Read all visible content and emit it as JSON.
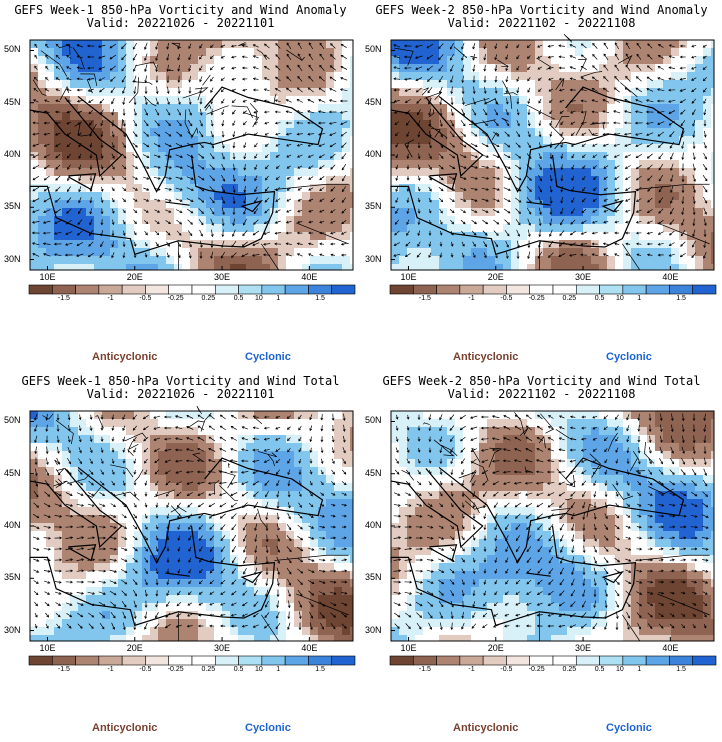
{
  "panels": [
    {
      "title": "GEFS Week-1 850-hPa Vorticity and Wind Anomaly",
      "valid": "Valid: 20221026 - 20221101"
    },
    {
      "title": "GEFS Week-2 850-hPa Vorticity and Wind Anomaly",
      "valid": "Valid: 20221102 - 20221108"
    },
    {
      "title": "GEFS Week-1 850-hPa Vorticity and Wind Total",
      "valid": "Valid: 20221026 - 20221101"
    },
    {
      "title": "GEFS Week-2 850-hPa Vorticity and Wind Total",
      "valid": "Valid: 20221102 - 20221108"
    }
  ],
  "axes": {
    "lat_labels": [
      "50N",
      "45N",
      "40N",
      "35N",
      "30N"
    ],
    "lon_labels": [
      "10E",
      "20E",
      "30E",
      "40E"
    ]
  },
  "colorbar": {
    "labels": [
      "-1.5",
      "-1",
      "-0.5",
      "-0.25",
      "0.25",
      "0.5",
      "1",
      "1.5"
    ],
    "exponent": "10",
    "colors": [
      "#6e4433",
      "#8f6351",
      "#ad8471",
      "#c9a898",
      "#e2cbc0",
      "#f3e6e0",
      "#ffffff",
      "#ffffff",
      "#d8f1f9",
      "#ace0f2",
      "#82c6ee",
      "#5ea5e8",
      "#3c83dc",
      "#2163d0"
    ]
  },
  "legend": {
    "anticyclonic": "Anticyclonic",
    "cyclonic": "Cyclonic"
  },
  "colors": {
    "anticyclonic": "#7a4130",
    "cyclonic": "#1e63d6"
  }
}
